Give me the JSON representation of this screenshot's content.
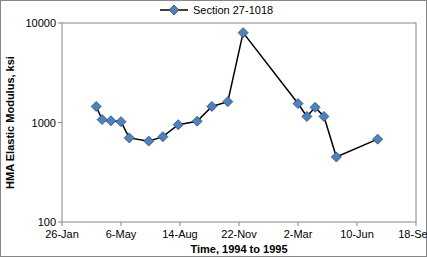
{
  "chart_data": {
    "type": "line",
    "x_label": "Time, 1994 to 1995",
    "y_label": "HMA Elastic Modulus, ksi",
    "x": [
      58,
      68,
      83,
      100,
      114,
      147,
      171,
      197,
      229,
      254,
      281,
      307,
      400,
      415,
      429,
      444,
      465,
      535
    ],
    "series": [
      {
        "name": "Section 27-1018",
        "color": "#4f81bd",
        "marker": "diamond",
        "line_style": "solid",
        "values": [
          1450,
          1070,
          1040,
          1020,
          700,
          650,
          720,
          950,
          1030,
          1450,
          1620,
          8000,
          1550,
          1150,
          1420,
          1150,
          450,
          680
        ]
      }
    ],
    "xlim": [
      0,
      600
    ],
    "xticks": [
      {
        "value": 0,
        "label": "26-Jan"
      },
      {
        "value": 100,
        "label": "6-May"
      },
      {
        "value": 200,
        "label": "14-Aug"
      },
      {
        "value": 300,
        "label": "22-Nov"
      },
      {
        "value": 400,
        "label": "2-Mar"
      },
      {
        "value": 500,
        "label": "10-Jun"
      },
      {
        "value": 600,
        "label": "18-Sep"
      }
    ],
    "ylim": [
      100,
      10000
    ],
    "yticks": [
      100,
      1000,
      10000
    ],
    "log": "y",
    "grid": false,
    "legend": "top"
  }
}
